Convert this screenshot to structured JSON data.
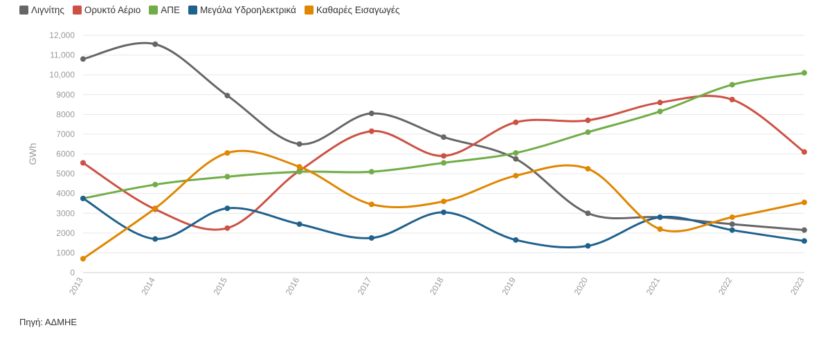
{
  "chart_data": {
    "type": "line",
    "curve": "smooth",
    "ylabel": "GWh",
    "xlabel": "",
    "ylim": [
      0,
      12000
    ],
    "yticks": [
      0,
      1000,
      2000,
      3000,
      4000,
      5000,
      6000,
      7000,
      8000,
      9000,
      10000,
      11000,
      12000
    ],
    "ytick_labels": [
      "0",
      "1000",
      "2000",
      "3000",
      "4000",
      "5000",
      "6000",
      "7000",
      "8000",
      "9000",
      "10,000",
      "11,000",
      "12,000"
    ],
    "x": [
      "2013",
      "2014",
      "2015",
      "2016",
      "2017",
      "2018",
      "2019",
      "2020",
      "2021",
      "2022",
      "2023"
    ],
    "grid": true,
    "legend": "top-left",
    "series": [
      {
        "name": "Λιγνίτης",
        "color": "#666666",
        "values": [
          10800,
          11550,
          8950,
          6500,
          8050,
          6850,
          5750,
          3000,
          2800,
          2450,
          2150
        ]
      },
      {
        "name": "Ορυκτό Αέριο",
        "color": "#cc5144",
        "values": [
          5550,
          3200,
          2250,
          5150,
          7150,
          5900,
          7600,
          7700,
          8600,
          8750,
          6100
        ]
      },
      {
        "name": "ΑΠΕ",
        "color": "#70ad47",
        "values": [
          3750,
          4450,
          4850,
          5100,
          5100,
          5550,
          6050,
          7100,
          8150,
          9500,
          10100
        ]
      },
      {
        "name": "Μεγάλα Υδροηλεκτρικά",
        "color": "#1f618d",
        "values": [
          3750,
          1700,
          3250,
          2450,
          1750,
          3050,
          1650,
          1350,
          2800,
          2150,
          1600
        ]
      },
      {
        "name": "Καθαρές Εισαγωγές",
        "color": "#e08600",
        "values": [
          700,
          3250,
          6050,
          5350,
          3450,
          3600,
          4900,
          5250,
          2200,
          2800,
          3550
        ]
      }
    ]
  },
  "source_note": "Πηγή: ΑΔΜΗΕ"
}
